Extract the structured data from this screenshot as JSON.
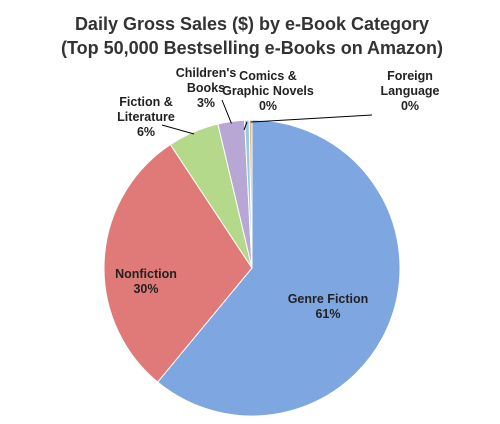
{
  "chart_data": {
    "type": "pie",
    "title": "Daily Gross Sales ($) by e-Book Category",
    "subtitle": "(Top 50,000 Bestselling e-Books on Amazon)",
    "slices": [
      {
        "name": "Genre Fiction",
        "label_lines": [
          "Genre Fiction",
          "61%"
        ],
        "percent": 61,
        "value": 61.0,
        "color": "#7ea6e0"
      },
      {
        "name": "Nonfiction",
        "label_lines": [
          "Nonfiction",
          "30%"
        ],
        "percent": 30,
        "value": 29.7,
        "color": "#e07a78"
      },
      {
        "name": "Fiction & Literature",
        "label_lines": [
          "Fiction &",
          "Literature",
          "6%"
        ],
        "percent": 6,
        "value": 5.6,
        "color": "#b5d98a"
      },
      {
        "name": "Children's Books",
        "label_lines": [
          "Children's",
          "Books",
          "3%"
        ],
        "percent": 3,
        "value": 2.9,
        "color": "#b8a6d4"
      },
      {
        "name": "Comics & Graphic Novels",
        "label_lines": [
          "Comics &",
          "Graphic Novels",
          "0%"
        ],
        "percent": 0,
        "value": 0.5,
        "color": "#8ecfe0"
      },
      {
        "name": "Foreign Language",
        "label_lines": [
          "Foreign",
          "Language",
          "0%"
        ],
        "percent": 0,
        "value": 0.3,
        "color": "#f2b27a"
      }
    ],
    "start_angle": "12 o'clock",
    "direction": "clockwise",
    "legend": "none"
  }
}
